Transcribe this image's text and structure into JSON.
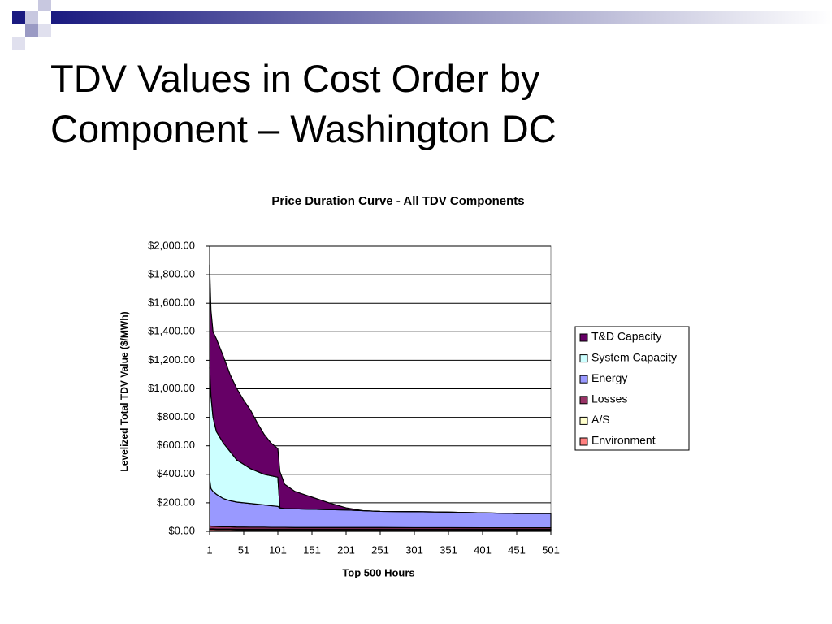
{
  "title": "TDV Values in Cost Order by Component – Washington DC",
  "chart_data": {
    "type": "stacked-area",
    "title": "Price Duration Curve - All TDV Components",
    "x_label": "Top 500 Hours",
    "y_label": "Levelized Total TDV Value ($/MWh)",
    "x": [
      1,
      3,
      6,
      11,
      21,
      31,
      41,
      51,
      61,
      71,
      81,
      91,
      101,
      104,
      111,
      126,
      151,
      176,
      201,
      226,
      251,
      301,
      351,
      401,
      451,
      501
    ],
    "xlim": [
      1,
      501
    ],
    "xticks": [
      1,
      51,
      101,
      151,
      201,
      251,
      301,
      351,
      401,
      451,
      501
    ],
    "ylim": [
      0,
      2000
    ],
    "yticks": [
      {
        "value": 0,
        "label": "$0.00"
      },
      {
        "value": 200,
        "label": "$200.00"
      },
      {
        "value": 400,
        "label": "$400.00"
      },
      {
        "value": 600,
        "label": "$600.00"
      },
      {
        "value": 800,
        "label": "$800.00"
      },
      {
        "value": 1000,
        "label": "$1,000.00"
      },
      {
        "value": 1200,
        "label": "$1,200.00"
      },
      {
        "value": 1400,
        "label": "$1,400.00"
      },
      {
        "value": 1600,
        "label": "$1,600.00"
      },
      {
        "value": 1800,
        "label": "$1,800.00"
      },
      {
        "value": 2000,
        "label": "$2,000.00"
      }
    ],
    "grid": true,
    "legend": "right",
    "series": [
      {
        "name": "T&D Capacity",
        "color": "#660066",
        "values": [
          720,
          600,
          600,
          650,
          610,
          540,
          500,
          450,
          410,
          340,
          280,
          230,
          200,
          255,
          170,
          122,
          85,
          48,
          15,
          0,
          0,
          0,
          0,
          0,
          0,
          0
        ]
      },
      {
        "name": "System Capacity",
        "color": "#ccffff",
        "values": [
          780,
          650,
          520,
          440,
          390,
          345,
          295,
          270,
          245,
          230,
          215,
          210,
          205,
          0,
          0,
          0,
          0,
          0,
          0,
          0,
          0,
          0,
          0,
          0,
          0,
          0
        ]
      },
      {
        "name": "Energy",
        "color": "#9999ff",
        "values": [
          333,
          263,
          245,
          226,
          198,
          183,
          175,
          170,
          166,
          161,
          156,
          152,
          147,
          137,
          132,
          131,
          128,
          125,
          123,
          118,
          113,
          112,
          109,
          105,
          100,
          100
        ]
      },
      {
        "name": "Losses",
        "color": "#993366",
        "values": [
          20,
          20,
          18,
          18,
          16,
          16,
          15,
          15,
          14,
          14,
          14,
          13,
          13,
          13,
          13,
          12,
          12,
          12,
          12,
          12,
          12,
          11,
          11,
          11,
          11,
          11
        ]
      },
      {
        "name": "A/S",
        "color": "#ffffcc",
        "values": [
          5,
          5,
          5,
          5,
          5,
          5,
          5,
          5,
          5,
          5,
          5,
          5,
          5,
          5,
          5,
          5,
          5,
          5,
          5,
          5,
          5,
          5,
          5,
          5,
          5,
          5
        ]
      },
      {
        "name": "Environment",
        "color": "#ff8080",
        "values": [
          12,
          12,
          12,
          11,
          11,
          11,
          10,
          10,
          10,
          10,
          10,
          10,
          10,
          10,
          10,
          10,
          10,
          10,
          10,
          10,
          10,
          10,
          10,
          9,
          9,
          9
        ]
      }
    ]
  }
}
